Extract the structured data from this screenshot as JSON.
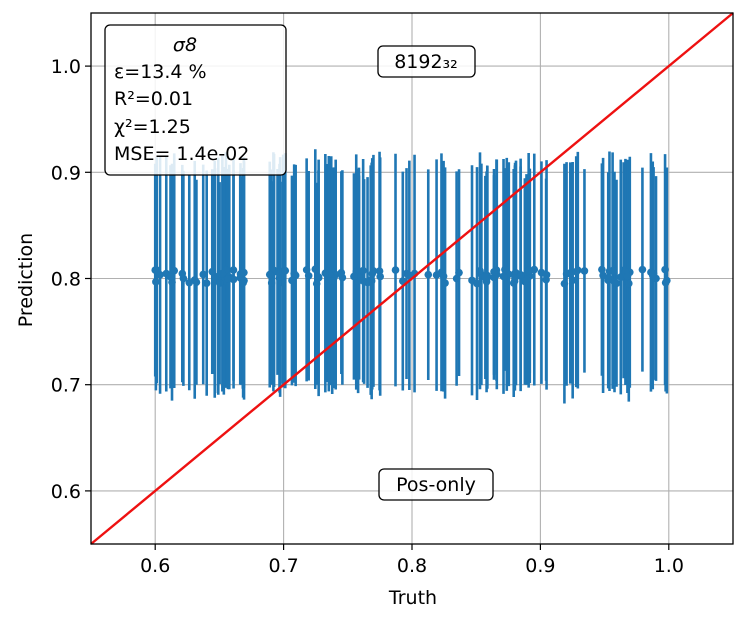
{
  "chart_data": {
    "type": "scatter",
    "xlabel": "Truth",
    "ylabel": "Prediction",
    "xlim": [
      0.55,
      1.05
    ],
    "ylim": [
      0.55,
      1.05
    ],
    "xticks": [
      0.6,
      0.7,
      0.8,
      0.9,
      1.0
    ],
    "yticks": [
      0.6,
      0.7,
      0.8,
      0.9,
      1.0
    ],
    "xtick_labels": [
      "0.6",
      "0.7",
      "0.8",
      "0.9",
      "1.0"
    ],
    "ytick_labels": [
      "0.6",
      "0.7",
      "0.8",
      "0.9",
      "1.0"
    ],
    "grid": true,
    "series_color": "#1f77b4",
    "reference_line": {
      "from": [
        0.55,
        0.55
      ],
      "to": [
        1.05,
        1.05
      ],
      "color": "#ee1111"
    },
    "stats_box": {
      "title": "σ8",
      "eps": "ε=13.4 %",
      "r2": "R²=0.01",
      "chi2": "χ²=1.25",
      "mse": "MSE= 1.4e-02"
    },
    "tag_label": "8192₃₂",
    "mode_label": "Pos-only",
    "points": {
      "count": 150,
      "x_range": [
        0.6,
        1.0
      ],
      "y_center": 0.802,
      "y_jitter": 0.007,
      "err_half_min": 0.095,
      "err_half_max": 0.113,
      "gaps": [
        [
          0.675,
          0.685
        ],
        [
          0.905,
          0.918
        ]
      ]
    }
  }
}
